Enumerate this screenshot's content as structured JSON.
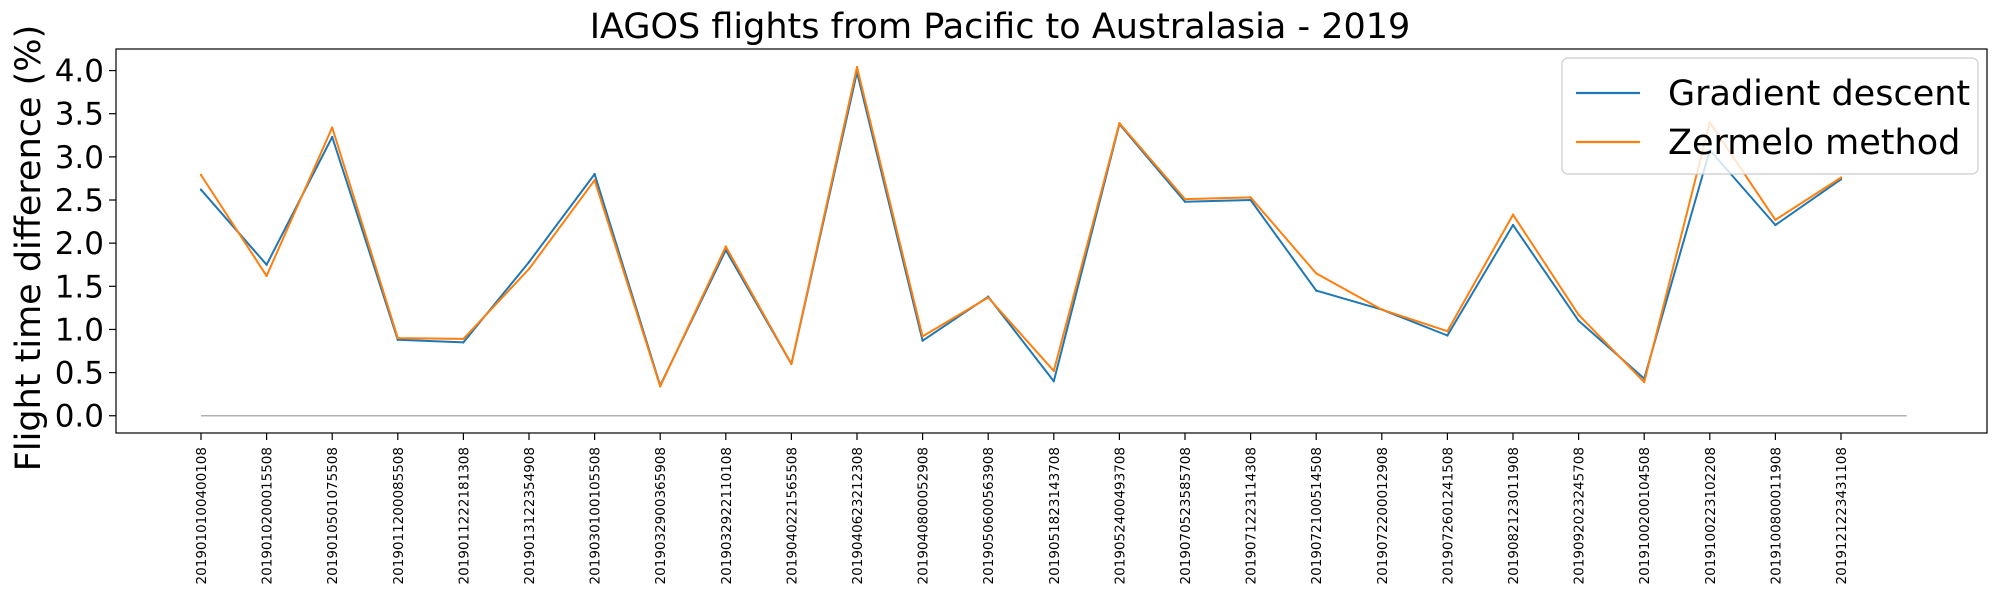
{
  "chart_data": {
    "type": "line",
    "title": "IAGOS flights from Pacific to Australasia - 2019",
    "ylabel": "Flight time difference (%)",
    "xlabel": "",
    "ylim": [
      -0.2,
      4.25
    ],
    "yticks": [
      "0.0",
      "0.5",
      "1.0",
      "1.5",
      "2.0",
      "2.5",
      "3.0",
      "3.5",
      "4.0"
    ],
    "grid": false,
    "legend_position": "top-right",
    "categories": [
      "2019010100400108",
      "2019010200015508",
      "2019010501075508",
      "2019011200085508",
      "2019011222181308",
      "2019013122354908",
      "2019030100105508",
      "2019032900365908",
      "2019032922110108",
      "2019040221565508",
      "2019040623212308",
      "2019040800052908",
      "2019050600563908",
      "2019051823143708",
      "2019052400493708",
      "2019070523585708",
      "2019071223114308",
      "2019072100514508",
      "2019072200012908",
      "2019072601241508",
      "2019082123011908",
      "2019092023245708",
      "2019100200104508",
      "2019100223102208",
      "2019100800011908",
      "2019121223431108"
    ],
    "series": [
      {
        "name": "Gradient descent",
        "color": "#1f77b4",
        "values": [
          2.62,
          1.75,
          3.23,
          0.88,
          0.85,
          1.78,
          2.8,
          0.35,
          1.92,
          0.6,
          3.98,
          0.87,
          1.38,
          0.4,
          3.38,
          2.48,
          2.5,
          1.45,
          1.23,
          0.93,
          2.21,
          1.1,
          0.43,
          3.08,
          2.21,
          2.74
        ]
      },
      {
        "name": "Zermelo method",
        "color": "#ff7f0e",
        "values": [
          2.79,
          1.62,
          3.34,
          0.9,
          0.89,
          1.7,
          2.73,
          0.34,
          1.96,
          0.6,
          4.04,
          0.92,
          1.37,
          0.52,
          3.39,
          2.51,
          2.53,
          1.65,
          1.23,
          0.98,
          2.33,
          1.17,
          0.39,
          3.4,
          2.27,
          2.76
        ]
      }
    ],
    "reference_line": {
      "y": 0,
      "color": "#b0b0b0"
    }
  }
}
